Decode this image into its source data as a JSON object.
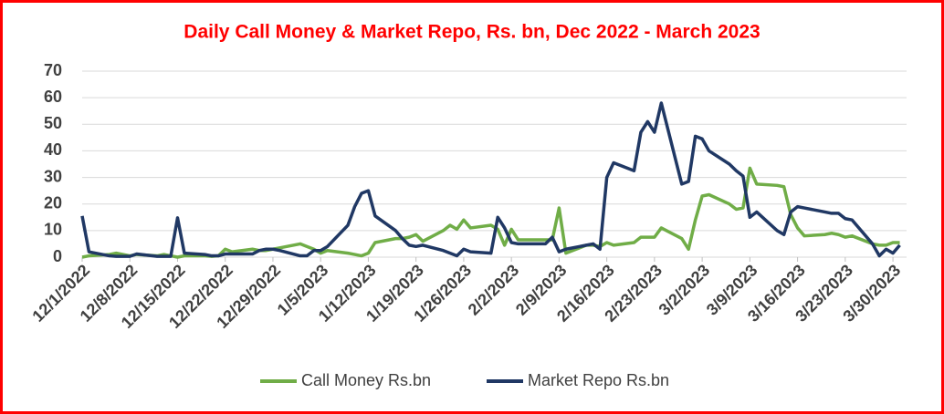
{
  "chart_data": {
    "type": "line",
    "title": "Daily Call Money & Market Repo, Rs. bn,  Dec 2022 - March 2023",
    "x": [
      "12/1/2022",
      "12/2/2022",
      "12/5/2022",
      "12/6/2022",
      "12/7/2022",
      "12/8/2022",
      "12/9/2022",
      "12/12/2022",
      "12/13/2022",
      "12/14/2022",
      "12/15/2022",
      "12/16/2022",
      "12/19/2022",
      "12/20/2022",
      "12/21/2022",
      "12/22/2022",
      "12/23/2022",
      "12/26/2022",
      "12/27/2022",
      "12/28/2022",
      "12/29/2022",
      "12/30/2022",
      "1/2/2023",
      "1/3/2023",
      "1/4/2023",
      "1/5/2023",
      "1/6/2023",
      "1/9/2023",
      "1/10/2023",
      "1/11/2023",
      "1/12/2023",
      "1/13/2023",
      "1/16/2023",
      "1/17/2023",
      "1/18/2023",
      "1/19/2023",
      "1/20/2023",
      "1/23/2023",
      "1/24/2023",
      "1/25/2023",
      "1/26/2023",
      "1/27/2023",
      "1/30/2023",
      "1/31/2023",
      "2/1/2023",
      "2/2/2023",
      "2/3/2023",
      "2/6/2023",
      "2/7/2023",
      "2/8/2023",
      "2/9/2023",
      "2/10/2023",
      "2/13/2023",
      "2/14/2023",
      "2/15/2023",
      "2/16/2023",
      "2/17/2023",
      "2/20/2023",
      "2/21/2023",
      "2/22/2023",
      "2/23/2023",
      "2/24/2023",
      "2/27/2023",
      "2/28/2023",
      "3/1/2023",
      "3/2/2023",
      "3/3/2023",
      "3/6/2023",
      "3/7/2023",
      "3/8/2023",
      "3/9/2023",
      "3/10/2023",
      "3/13/2023",
      "3/14/2023",
      "3/15/2023",
      "3/16/2023",
      "3/17/2023",
      "3/20/2023",
      "3/21/2023",
      "3/22/2023",
      "3/23/2023",
      "3/24/2023",
      "3/27/2023",
      "3/28/2023",
      "3/29/2023",
      "3/30/2023",
      "3/31/2023"
    ],
    "series": [
      {
        "name": "Call Money Rs.bn",
        "color": "#70ad47",
        "values": [
          0,
          0.5,
          1,
          1.5,
          1,
          0.5,
          1,
          0.5,
          1,
          0.5,
          0,
          0.5,
          0.5,
          0.3,
          0.5,
          3,
          2,
          3,
          2.5,
          2.5,
          3,
          3.5,
          5,
          4,
          3,
          1.5,
          2.5,
          1.5,
          1,
          0.5,
          1.5,
          5.5,
          7,
          7,
          7.5,
          8.5,
          6,
          10,
          12,
          10.5,
          14,
          11,
          12,
          10.5,
          4.5,
          10.5,
          6.5,
          6.5,
          6.5,
          6.5,
          18.5,
          1.5,
          4.5,
          4.5,
          4,
          5.5,
          4.5,
          5.5,
          7.5,
          7.5,
          7.5,
          11,
          7,
          3,
          14,
          23,
          23.5,
          20,
          18,
          18.5,
          33.5,
          27.5,
          27,
          26.5,
          16,
          11,
          8,
          8.5,
          9,
          8.5,
          7.5,
          8,
          5,
          4.5,
          4.5,
          5.5,
          5.5
        ]
      },
      {
        "name": "Market Repo Rs.bn",
        "color": "#203864",
        "values": [
          15.5,
          2,
          0.5,
          0.3,
          0.3,
          0.3,
          1.2,
          0.3,
          0.3,
          0.3,
          14.8,
          1.5,
          1,
          0.5,
          0.5,
          1.2,
          1.2,
          1.2,
          2.5,
          3,
          3,
          2.5,
          0.5,
          0.5,
          2.5,
          2.5,
          4,
          12,
          19,
          24,
          25,
          15.5,
          10,
          7,
          4.5,
          4,
          4.5,
          2.5,
          1.5,
          0.5,
          3,
          2,
          1.5,
          15,
          11,
          5.5,
          5,
          5,
          5,
          7.5,
          2,
          3,
          4.5,
          5,
          3,
          30,
          35.5,
          32.5,
          47,
          51,
          47,
          58,
          27.5,
          28.5,
          45.5,
          44.5,
          40,
          35,
          32.5,
          30.5,
          15,
          17,
          10,
          8.5,
          17,
          19,
          18.5,
          17,
          16.5,
          16.5,
          14.5,
          14,
          5,
          0.5,
          3,
          1.5,
          4.5
        ]
      }
    ],
    "xlim": [
      "12/1/2022",
      "4/1/2023"
    ],
    "xticks": [
      "12/1/2022",
      "12/8/2022",
      "12/15/2022",
      "12/22/2022",
      "12/29/2022",
      "1/5/2023",
      "1/12/2023",
      "1/19/2023",
      "1/26/2023",
      "2/2/2023",
      "2/9/2023",
      "2/16/2023",
      "2/23/2023",
      "3/2/2023",
      "3/9/2023",
      "3/16/2023",
      "3/23/2023",
      "3/30/2023"
    ],
    "ylim": [
      0,
      70
    ],
    "yticks": [
      0,
      10,
      20,
      30,
      40,
      50,
      60,
      70
    ],
    "grid": true,
    "legend": "bottom"
  }
}
